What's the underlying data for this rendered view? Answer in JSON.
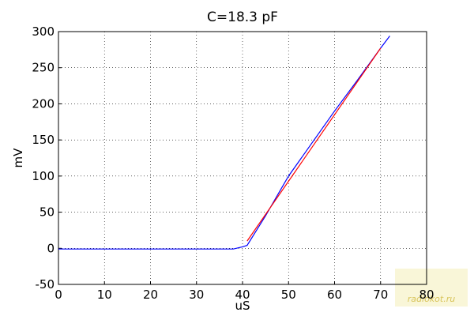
{
  "chart_data": {
    "type": "line",
    "title": "C=18.3 pF",
    "x_label": "uS",
    "y_label": "mV",
    "xlim": [
      0,
      80
    ],
    "ylim": [
      -50,
      300
    ],
    "xticks": [
      0,
      10,
      20,
      30,
      40,
      50,
      60,
      70,
      80
    ],
    "yticks": [
      -50,
      0,
      50,
      100,
      150,
      200,
      250,
      300
    ],
    "grid": true,
    "series": [
      {
        "color": "#0000ff",
        "x": [
          0,
          10,
          20,
          30,
          38,
          40,
          41,
          45,
          50,
          55,
          60,
          65,
          70,
          72
        ],
        "values": [
          -1,
          -1,
          -1,
          -1,
          -1,
          2,
          4,
          45,
          100,
          145,
          190,
          233,
          277,
          294
        ]
      },
      {
        "color": "#ff0000",
        "x": [
          41,
          70
        ],
        "values": [
          10,
          277
        ]
      }
    ],
    "watermark": "radiokot.ru"
  }
}
